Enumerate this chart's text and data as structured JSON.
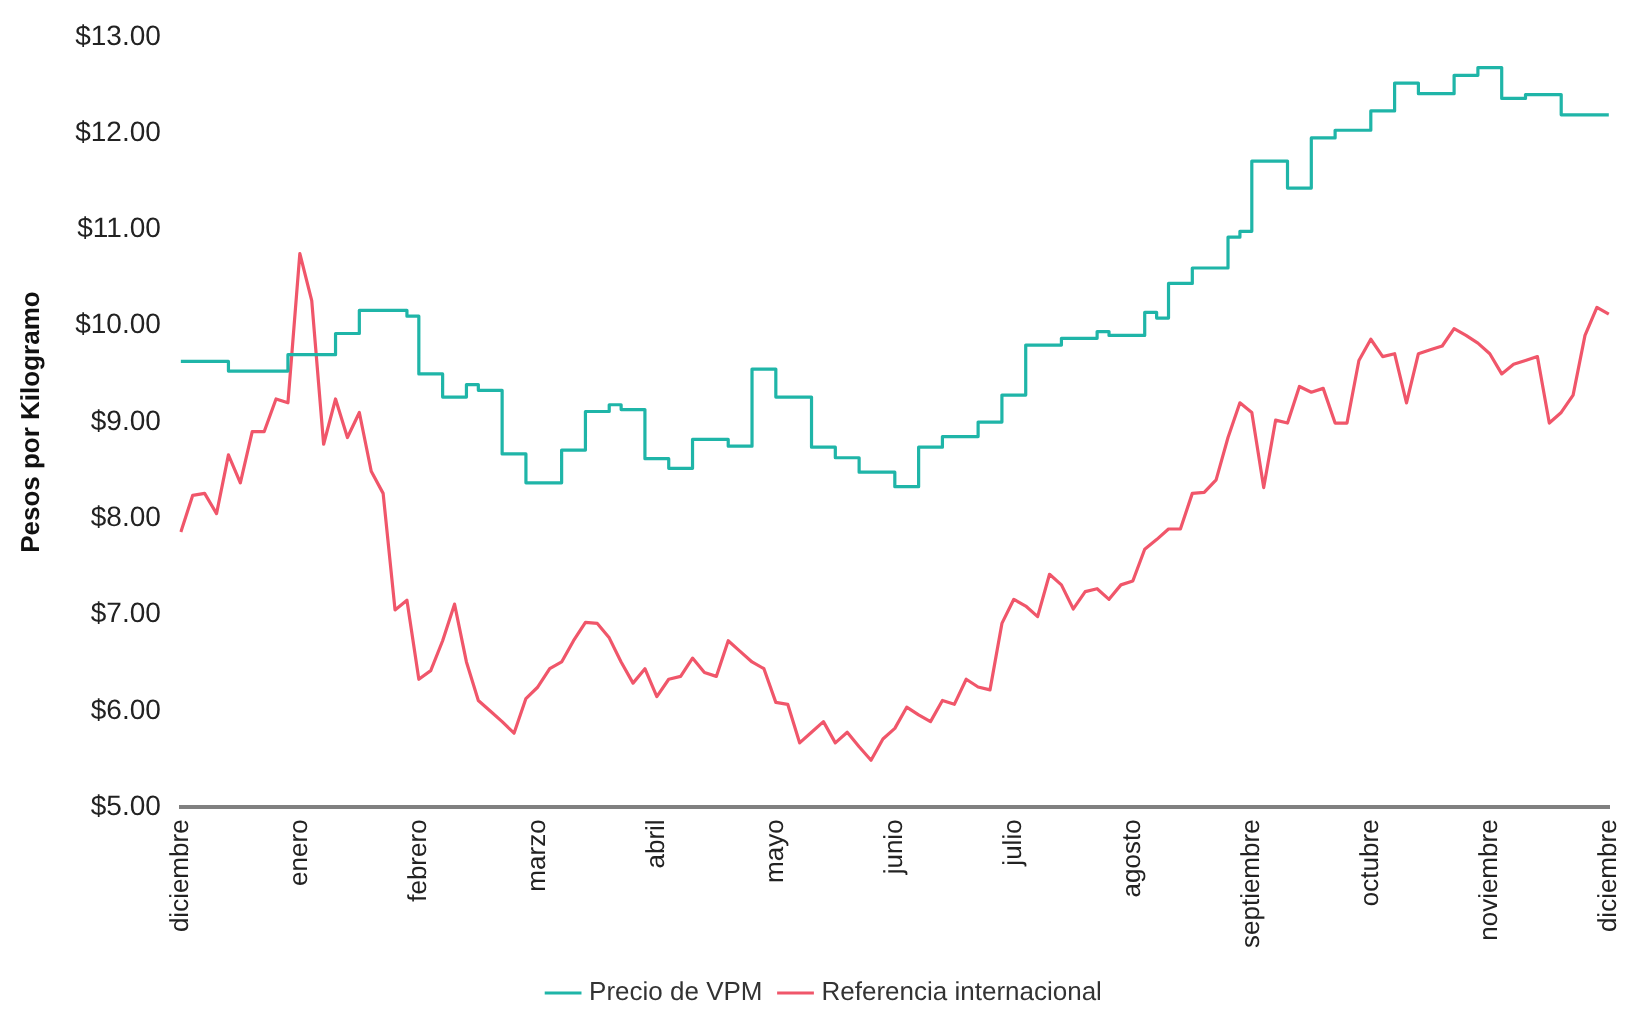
{
  "chart_data": {
    "type": "line",
    "ylabel": "Pesos por Kilogramo",
    "categories": [
      "diciembre",
      null,
      null,
      null,
      null,
      null,
      null,
      null,
      null,
      null,
      "enero",
      null,
      null,
      null,
      null,
      null,
      null,
      null,
      null,
      null,
      "febrero",
      null,
      null,
      null,
      null,
      null,
      null,
      null,
      null,
      null,
      "marzo",
      null,
      null,
      null,
      null,
      null,
      null,
      null,
      null,
      null,
      "abril",
      null,
      null,
      null,
      null,
      null,
      null,
      null,
      null,
      null,
      "mayo",
      null,
      null,
      null,
      null,
      null,
      null,
      null,
      null,
      null,
      "junio",
      null,
      null,
      null,
      null,
      null,
      null,
      null,
      null,
      null,
      "julio",
      null,
      null,
      null,
      null,
      null,
      null,
      null,
      null,
      null,
      "agosto",
      null,
      null,
      null,
      null,
      null,
      null,
      null,
      null,
      null,
      "septiembre",
      null,
      null,
      null,
      null,
      null,
      null,
      null,
      null,
      null,
      "octubre",
      null,
      null,
      null,
      null,
      null,
      null,
      null,
      null,
      null,
      "noviembre",
      null,
      null,
      null,
      null,
      null,
      null,
      null,
      null,
      null,
      "diciembre"
    ],
    "ylim": [
      5,
      13
    ],
    "yticks": [
      {
        "value": 5,
        "label": "$5.00"
      },
      {
        "value": 6,
        "label": "$6.00"
      },
      {
        "value": 7,
        "label": "$7.00"
      },
      {
        "value": 8,
        "label": "$8.00"
      },
      {
        "value": 9,
        "label": "$9.00"
      },
      {
        "value": 10,
        "label": "$10.00"
      },
      {
        "value": 11,
        "label": "$11.00"
      },
      {
        "value": 12,
        "label": "$12.00"
      },
      {
        "value": 13,
        "label": "$13.00"
      }
    ],
    "grid": false,
    "legend": "bottom",
    "marker": "none",
    "line_style": "solid",
    "series": [
      {
        "name": "Precio de VPM",
        "type": "step",
        "color": "#1fb5a8",
        "values": [
          9.63,
          9.63,
          9.63,
          9.63,
          9.63,
          9.53,
          9.53,
          9.53,
          9.53,
          9.53,
          9.7,
          9.7,
          9.7,
          9.7,
          9.92,
          9.92,
          10.16,
          10.16,
          10.16,
          10.16,
          10.1,
          9.5,
          9.5,
          9.26,
          9.26,
          9.39,
          9.33,
          9.33,
          8.67,
          8.67,
          8.37,
          8.37,
          8.37,
          8.71,
          8.71,
          9.11,
          9.11,
          9.18,
          9.13,
          9.13,
          8.62,
          8.62,
          8.52,
          8.52,
          8.82,
          8.82,
          8.82,
          8.75,
          8.75,
          9.55,
          9.55,
          9.26,
          9.26,
          9.26,
          8.74,
          8.74,
          8.63,
          8.63,
          8.48,
          8.48,
          8.48,
          8.33,
          8.33,
          8.74,
          8.74,
          8.85,
          8.85,
          8.85,
          9.0,
          9.0,
          9.28,
          9.28,
          9.8,
          9.8,
          9.8,
          9.87,
          9.87,
          9.87,
          9.94,
          9.9,
          9.9,
          9.9,
          10.14,
          10.08,
          10.44,
          10.44,
          10.6,
          10.6,
          10.6,
          10.92,
          10.98,
          11.71,
          11.71,
          11.71,
          11.43,
          11.43,
          11.95,
          11.95,
          12.03,
          12.03,
          12.03,
          12.23,
          12.23,
          12.52,
          12.52,
          12.41,
          12.41,
          12.41,
          12.6,
          12.6,
          12.68,
          12.68,
          12.36,
          12.36,
          12.4,
          12.4,
          12.4,
          12.19,
          12.19,
          12.19,
          12.19
        ]
      },
      {
        "name": "Referencia internacional",
        "color": "#f0566a",
        "values": [
          7.86,
          8.24,
          8.26,
          8.05,
          8.66,
          8.37,
          8.9,
          8.9,
          9.24,
          9.2,
          10.75,
          10.26,
          8.77,
          9.24,
          8.84,
          9.1,
          8.49,
          8.26,
          7.05,
          7.15,
          6.33,
          6.42,
          6.73,
          7.11,
          6.51,
          6.11,
          6.0,
          5.89,
          5.77,
          6.13,
          6.25,
          6.44,
          6.51,
          6.73,
          6.92,
          6.91,
          6.76,
          6.51,
          6.29,
          6.44,
          6.15,
          6.33,
          6.36,
          6.55,
          6.4,
          6.36,
          6.73,
          6.62,
          6.51,
          6.44,
          6.09,
          6.07,
          5.67,
          5.78,
          5.89,
          5.67,
          5.78,
          5.63,
          5.49,
          5.71,
          5.82,
          6.04,
          5.96,
          5.89,
          6.11,
          6.07,
          6.33,
          6.25,
          6.22,
          6.91,
          7.16,
          7.09,
          6.98,
          7.42,
          7.31,
          7.06,
          7.24,
          7.27,
          7.16,
          7.31,
          7.35,
          7.68,
          7.78,
          7.89,
          7.89,
          8.26,
          8.27,
          8.4,
          8.84,
          9.2,
          9.1,
          8.32,
          9.02,
          8.99,
          9.37,
          9.31,
          9.35,
          8.99,
          8.99,
          9.64,
          9.86,
          9.68,
          9.71,
          9.2,
          9.71,
          9.75,
          9.79,
          9.97,
          9.9,
          9.82,
          9.71,
          9.5,
          9.6,
          9.64,
          9.68,
          8.99,
          9.1,
          9.28,
          9.9,
          10.19,
          10.12
        ]
      }
    ]
  }
}
